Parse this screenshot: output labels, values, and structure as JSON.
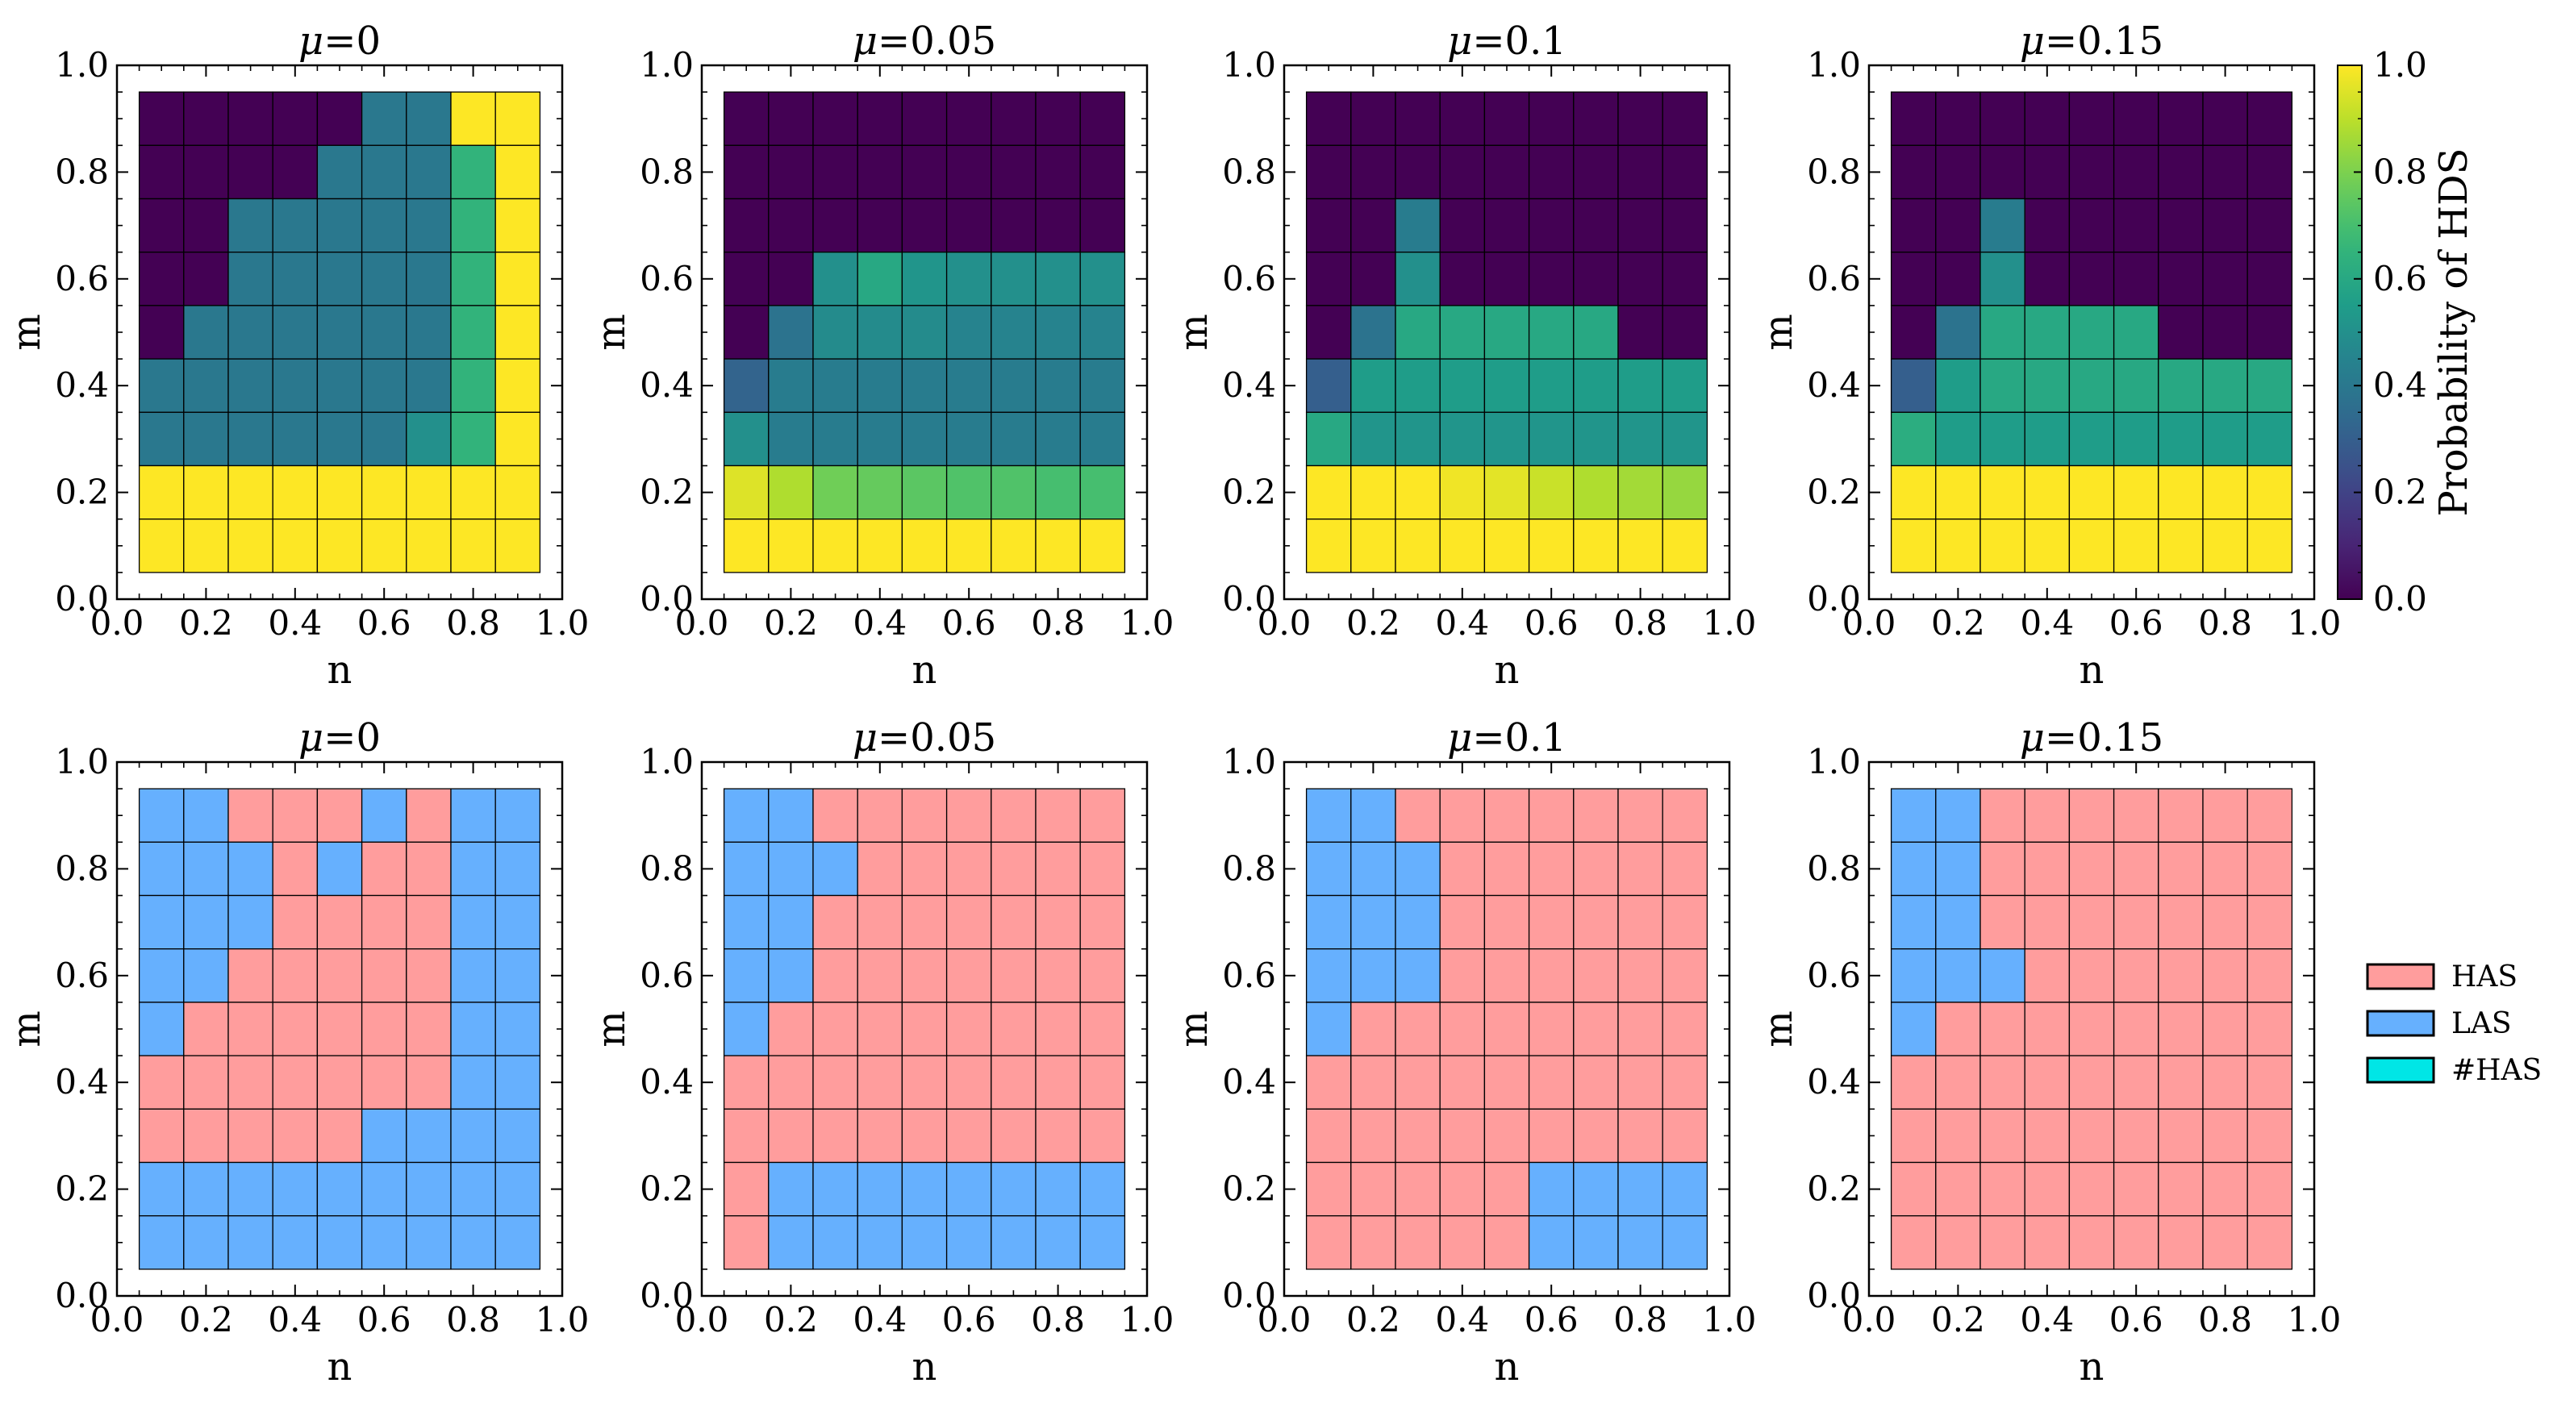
{
  "chart_data": {
    "type": "heatmap",
    "grid_step": 0.1,
    "cell_centers": [
      0.1,
      0.2,
      0.3,
      0.4,
      0.5,
      0.6,
      0.7,
      0.8,
      0.9
    ],
    "xlabel": "n",
    "ylabel": "m",
    "xlim": [
      0.0,
      1.0
    ],
    "ylim": [
      0.0,
      1.0
    ],
    "xticks": [
      "0.0",
      "0.2",
      "0.4",
      "0.6",
      "0.8",
      "1.0"
    ],
    "yticks": [
      "0.0",
      "0.2",
      "0.4",
      "0.6",
      "0.8",
      "1.0"
    ],
    "colorbar": {
      "label": "Probability of HDS",
      "range": [
        0.0,
        1.0
      ],
      "ticks": [
        "0.0",
        "0.2",
        "0.4",
        "0.6",
        "0.8",
        "1.0"
      ]
    },
    "legend": {
      "position": "right",
      "entries": [
        {
          "label": "HAS",
          "color": "#ff9d9d"
        },
        {
          "label": "LAS",
          "color": "#66b0fe"
        },
        {
          "label": "#HAS",
          "color": "#00e6e6"
        }
      ]
    },
    "probability_panels": [
      {
        "title_symbol": "μ",
        "title_value": "=0",
        "rows_high_to_low_m": [
          [
            0,
            0,
            0,
            0,
            0,
            0.4,
            0.4,
            1,
            1
          ],
          [
            0,
            0,
            0,
            0,
            0.4,
            0.4,
            0.4,
            0.65,
            1
          ],
          [
            0,
            0,
            0.4,
            0.4,
            0.4,
            0.4,
            0.4,
            0.65,
            1
          ],
          [
            0,
            0,
            0.4,
            0.4,
            0.4,
            0.4,
            0.4,
            0.65,
            1
          ],
          [
            0,
            0.4,
            0.4,
            0.4,
            0.4,
            0.4,
            0.4,
            0.65,
            1
          ],
          [
            0.4,
            0.4,
            0.4,
            0.4,
            0.4,
            0.4,
            0.4,
            0.65,
            1
          ],
          [
            0.4,
            0.4,
            0.4,
            0.4,
            0.4,
            0.4,
            0.5,
            0.65,
            1
          ],
          [
            1,
            1,
            1,
            1,
            1,
            1,
            1,
            1,
            1
          ],
          [
            1,
            1,
            1,
            1,
            1,
            1,
            1,
            1,
            1
          ]
        ]
      },
      {
        "title_symbol": "μ",
        "title_value": "=0.05",
        "rows_high_to_low_m": [
          [
            0,
            0,
            0,
            0,
            0,
            0,
            0,
            0,
            0
          ],
          [
            0,
            0,
            0,
            0,
            0,
            0,
            0,
            0,
            0
          ],
          [
            0,
            0,
            0,
            0,
            0,
            0,
            0,
            0,
            0
          ],
          [
            0,
            0,
            0.5,
            0.6,
            0.52,
            0.5,
            0.5,
            0.5,
            0.5
          ],
          [
            0,
            0.38,
            0.48,
            0.48,
            0.48,
            0.45,
            0.45,
            0.45,
            0.45
          ],
          [
            0.32,
            0.42,
            0.42,
            0.42,
            0.42,
            0.42,
            0.42,
            0.42,
            0.42
          ],
          [
            0.5,
            0.42,
            0.42,
            0.42,
            0.42,
            0.42,
            0.42,
            0.42,
            0.42
          ],
          [
            0.95,
            0.88,
            0.78,
            0.76,
            0.74,
            0.72,
            0.72,
            0.7,
            0.7
          ],
          [
            1,
            1,
            1,
            1,
            1,
            1,
            1,
            1,
            1
          ]
        ]
      },
      {
        "title_symbol": "μ",
        "title_value": "=0.1",
        "rows_high_to_low_m": [
          [
            0,
            0,
            0,
            0,
            0,
            0,
            0,
            0,
            0
          ],
          [
            0,
            0,
            0,
            0,
            0,
            0,
            0,
            0,
            0
          ],
          [
            0,
            0,
            0.42,
            0,
            0,
            0,
            0,
            0,
            0
          ],
          [
            0,
            0,
            0.5,
            0,
            0,
            0,
            0,
            0,
            0
          ],
          [
            0,
            0.38,
            0.6,
            0.6,
            0.6,
            0.6,
            0.6,
            0,
            0
          ],
          [
            0.3,
            0.55,
            0.55,
            0.55,
            0.55,
            0.55,
            0.55,
            0.55,
            0.55
          ],
          [
            0.6,
            0.52,
            0.52,
            0.52,
            0.52,
            0.52,
            0.52,
            0.52,
            0.52
          ],
          [
            1,
            1,
            1,
            0.98,
            0.96,
            0.92,
            0.88,
            0.86,
            0.84
          ],
          [
            1,
            1,
            1,
            1,
            1,
            1,
            1,
            1,
            1
          ]
        ]
      },
      {
        "title_symbol": "μ",
        "title_value": "=0.15",
        "rows_high_to_low_m": [
          [
            0,
            0,
            0,
            0,
            0,
            0,
            0,
            0,
            0
          ],
          [
            0,
            0,
            0,
            0,
            0,
            0,
            0,
            0,
            0
          ],
          [
            0,
            0,
            0.42,
            0,
            0,
            0,
            0,
            0,
            0
          ],
          [
            0,
            0,
            0.5,
            0,
            0,
            0,
            0,
            0,
            0
          ],
          [
            0,
            0.38,
            0.6,
            0.6,
            0.6,
            0.6,
            0,
            0,
            0
          ],
          [
            0.3,
            0.55,
            0.6,
            0.6,
            0.6,
            0.6,
            0.6,
            0.6,
            0.6
          ],
          [
            0.62,
            0.55,
            0.55,
            0.55,
            0.55,
            0.55,
            0.55,
            0.55,
            0.55
          ],
          [
            1,
            1,
            1,
            1,
            1,
            1,
            1,
            1,
            1
          ],
          [
            1,
            1,
            1,
            1,
            1,
            1,
            1,
            1,
            1
          ]
        ]
      }
    ],
    "state_panels": [
      {
        "title_symbol": "μ",
        "title_value": "=0",
        "rows_high_to_low_m": [
          [
            "LAS",
            "LAS",
            "HAS",
            "HAS",
            "HAS",
            "LAS",
            "HAS",
            "LAS",
            "LAS"
          ],
          [
            "LAS",
            "LAS",
            "LAS",
            "HAS",
            "LAS",
            "HAS",
            "HAS",
            "LAS",
            "LAS"
          ],
          [
            "LAS",
            "LAS",
            "LAS",
            "HAS",
            "HAS",
            "HAS",
            "HAS",
            "LAS",
            "LAS"
          ],
          [
            "LAS",
            "LAS",
            "HAS",
            "HAS",
            "HAS",
            "HAS",
            "HAS",
            "LAS",
            "LAS"
          ],
          [
            "LAS",
            "HAS",
            "HAS",
            "HAS",
            "HAS",
            "HAS",
            "HAS",
            "LAS",
            "LAS"
          ],
          [
            "HAS",
            "HAS",
            "HAS",
            "HAS",
            "HAS",
            "HAS",
            "HAS",
            "LAS",
            "LAS"
          ],
          [
            "HAS",
            "HAS",
            "HAS",
            "HAS",
            "HAS",
            "LAS",
            "LAS",
            "LAS",
            "LAS"
          ],
          [
            "LAS",
            "LAS",
            "LAS",
            "LAS",
            "LAS",
            "LAS",
            "LAS",
            "LAS",
            "LAS"
          ],
          [
            "LAS",
            "LAS",
            "LAS",
            "LAS",
            "LAS",
            "LAS",
            "LAS",
            "LAS",
            "LAS"
          ]
        ]
      },
      {
        "title_symbol": "μ",
        "title_value": "=0.05",
        "rows_high_to_low_m": [
          [
            "LAS",
            "LAS",
            "HAS",
            "HAS",
            "HAS",
            "HAS",
            "HAS",
            "HAS",
            "HAS"
          ],
          [
            "LAS",
            "LAS",
            "LAS",
            "HAS",
            "HAS",
            "HAS",
            "HAS",
            "HAS",
            "HAS"
          ],
          [
            "LAS",
            "LAS",
            "HAS",
            "HAS",
            "HAS",
            "HAS",
            "HAS",
            "HAS",
            "HAS"
          ],
          [
            "LAS",
            "LAS",
            "HAS",
            "HAS",
            "HAS",
            "HAS",
            "HAS",
            "HAS",
            "HAS"
          ],
          [
            "LAS",
            "HAS",
            "HAS",
            "HAS",
            "HAS",
            "HAS",
            "HAS",
            "HAS",
            "HAS"
          ],
          [
            "HAS",
            "HAS",
            "HAS",
            "HAS",
            "HAS",
            "HAS",
            "HAS",
            "HAS",
            "HAS"
          ],
          [
            "HAS",
            "HAS",
            "HAS",
            "HAS",
            "HAS",
            "HAS",
            "HAS",
            "HAS",
            "HAS"
          ],
          [
            "HAS",
            "LAS",
            "LAS",
            "LAS",
            "LAS",
            "LAS",
            "LAS",
            "LAS",
            "LAS"
          ],
          [
            "HAS",
            "LAS",
            "LAS",
            "LAS",
            "LAS",
            "LAS",
            "LAS",
            "LAS",
            "LAS"
          ]
        ]
      },
      {
        "title_symbol": "μ",
        "title_value": "=0.1",
        "rows_high_to_low_m": [
          [
            "LAS",
            "LAS",
            "HAS",
            "HAS",
            "HAS",
            "HAS",
            "HAS",
            "HAS",
            "HAS"
          ],
          [
            "LAS",
            "LAS",
            "LAS",
            "HAS",
            "HAS",
            "HAS",
            "HAS",
            "HAS",
            "HAS"
          ],
          [
            "LAS",
            "LAS",
            "LAS",
            "HAS",
            "HAS",
            "HAS",
            "HAS",
            "HAS",
            "HAS"
          ],
          [
            "LAS",
            "LAS",
            "LAS",
            "HAS",
            "HAS",
            "HAS",
            "HAS",
            "HAS",
            "HAS"
          ],
          [
            "LAS",
            "HAS",
            "HAS",
            "HAS",
            "HAS",
            "HAS",
            "HAS",
            "HAS",
            "HAS"
          ],
          [
            "HAS",
            "HAS",
            "HAS",
            "HAS",
            "HAS",
            "HAS",
            "HAS",
            "HAS",
            "HAS"
          ],
          [
            "HAS",
            "HAS",
            "HAS",
            "HAS",
            "HAS",
            "HAS",
            "HAS",
            "HAS",
            "HAS"
          ],
          [
            "HAS",
            "HAS",
            "HAS",
            "HAS",
            "HAS",
            "LAS",
            "LAS",
            "LAS",
            "LAS"
          ],
          [
            "HAS",
            "HAS",
            "HAS",
            "HAS",
            "HAS",
            "LAS",
            "LAS",
            "LAS",
            "LAS"
          ]
        ]
      },
      {
        "title_symbol": "μ",
        "title_value": "=0.15",
        "rows_high_to_low_m": [
          [
            "LAS",
            "LAS",
            "HAS",
            "HAS",
            "HAS",
            "HAS",
            "HAS",
            "HAS",
            "HAS"
          ],
          [
            "LAS",
            "LAS",
            "HAS",
            "HAS",
            "HAS",
            "HAS",
            "HAS",
            "HAS",
            "HAS"
          ],
          [
            "LAS",
            "LAS",
            "HAS",
            "HAS",
            "HAS",
            "HAS",
            "HAS",
            "HAS",
            "HAS"
          ],
          [
            "LAS",
            "LAS",
            "LAS",
            "HAS",
            "HAS",
            "HAS",
            "HAS",
            "HAS",
            "HAS"
          ],
          [
            "LAS",
            "HAS",
            "HAS",
            "HAS",
            "HAS",
            "HAS",
            "HAS",
            "HAS",
            "HAS"
          ],
          [
            "HAS",
            "HAS",
            "HAS",
            "HAS",
            "HAS",
            "HAS",
            "HAS",
            "HAS",
            "HAS"
          ],
          [
            "HAS",
            "HAS",
            "HAS",
            "HAS",
            "HAS",
            "HAS",
            "HAS",
            "HAS",
            "HAS"
          ],
          [
            "HAS",
            "HAS",
            "HAS",
            "HAS",
            "HAS",
            "HAS",
            "HAS",
            "HAS",
            "HAS"
          ],
          [
            "HAS",
            "HAS",
            "HAS",
            "HAS",
            "HAS",
            "HAS",
            "HAS",
            "HAS",
            "HAS"
          ]
        ]
      }
    ],
    "state_colors": {
      "HAS": "#ff9d9d",
      "LAS": "#66b0fe",
      "#HAS": "#00e6e6"
    }
  }
}
